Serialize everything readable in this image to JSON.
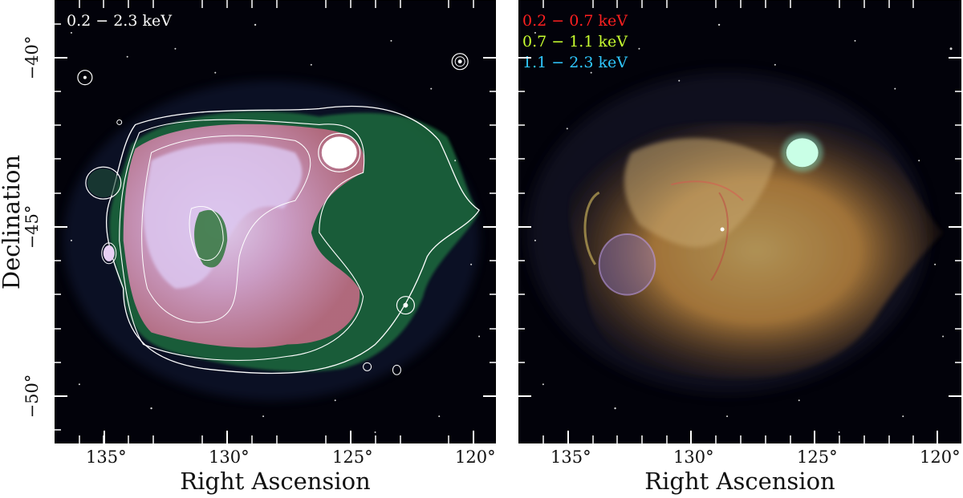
{
  "left_panel": {
    "band_label": "0.2 − 2.3 keV",
    "xlabel": "Right Ascension",
    "ylabel": "Declination",
    "colormap": [
      "#1a1040",
      "#1f6b3a",
      "#c87a8a",
      "#e6c8f0",
      "#ffffff"
    ],
    "contour_color": "#ffffff"
  },
  "right_panel": {
    "xlabel": "Right Ascension",
    "bands": [
      {
        "label": "0.2 − 0.7 keV",
        "color": "#ff2020"
      },
      {
        "label": "0.7 − 1.1 keV",
        "color": "#c8ff30"
      },
      {
        "label": "1.1 − 2.3 keV",
        "color": "#30c8ff"
      }
    ]
  },
  "axes": {
    "ra_ticks": [
      "135°",
      "130°",
      "125°",
      "120°"
    ],
    "dec_ticks": [
      "−40°",
      "−45°",
      "−50°"
    ]
  }
}
